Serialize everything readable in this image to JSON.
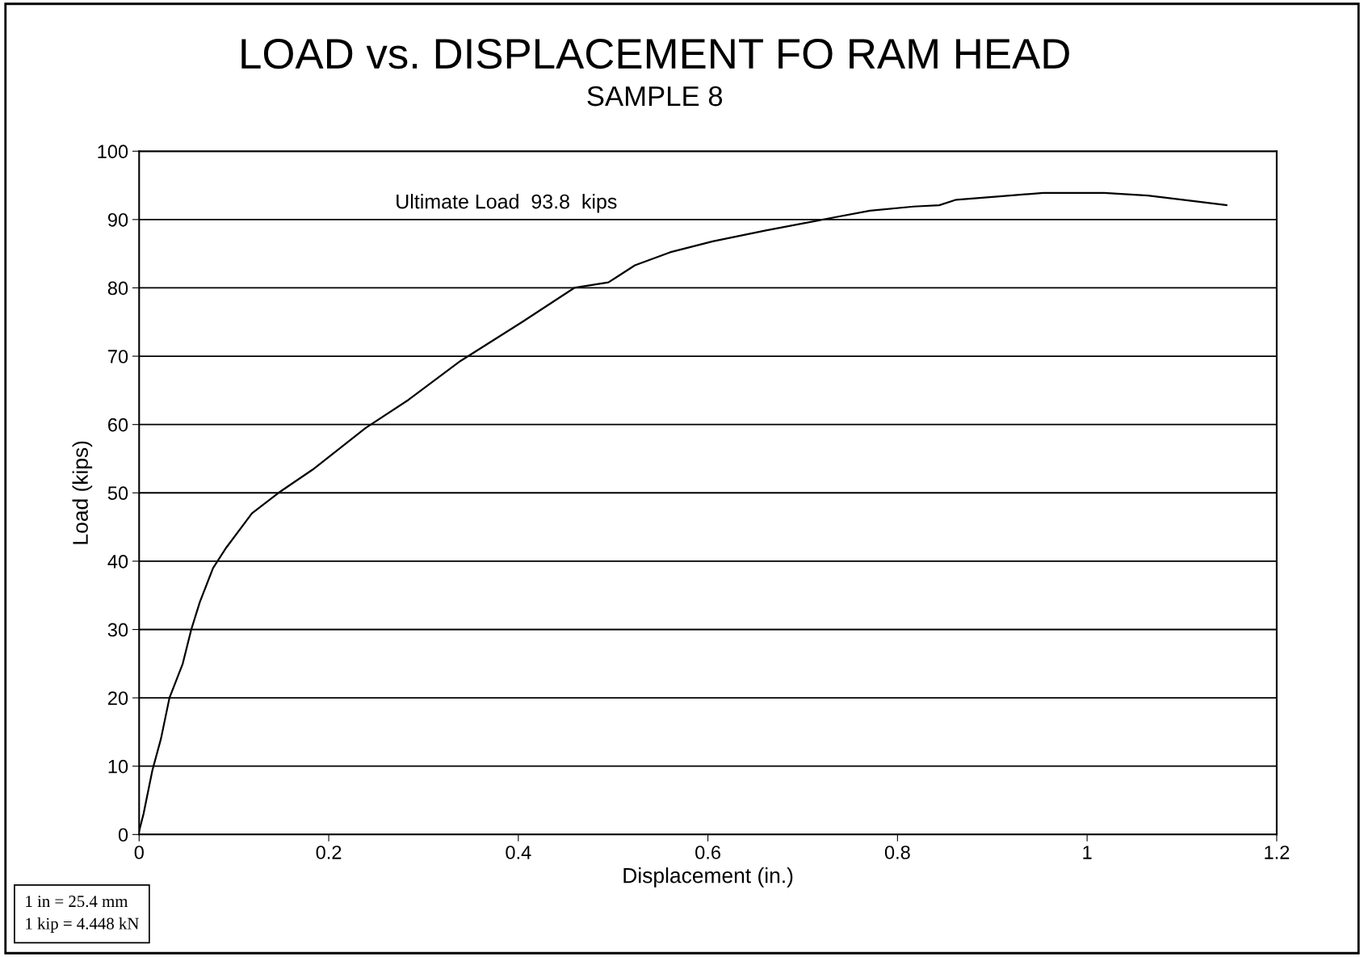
{
  "chart_data": {
    "type": "line",
    "title": "LOAD vs. DISPLACEMENT FO RAM HEAD",
    "subtitle": "SAMPLE 8",
    "xlabel": "Displacement (in.)",
    "ylabel": "Load (kips)",
    "x": [
      0,
      0.0046,
      0.014,
      0.023,
      0.032,
      0.046,
      0.055,
      0.064,
      0.078,
      0.092,
      0.119,
      0.147,
      0.183,
      0.239,
      0.284,
      0.339,
      0.404,
      0.459,
      0.495,
      0.523,
      0.56,
      0.605,
      0.661,
      0.725,
      0.771,
      0.817,
      0.844,
      0.862,
      0.908,
      0.954,
      1.018,
      1.064,
      1.101,
      1.147
    ],
    "series": [
      {
        "color": "#000000",
        "values": [
          0.5,
          3,
          9.4,
          14,
          20,
          25,
          30,
          34,
          39,
          42,
          47,
          50,
          53.4,
          59.5,
          63.6,
          69.3,
          75,
          80,
          80.8,
          83.3,
          85.2,
          86.8,
          88.4,
          90.1,
          91.3,
          91.9,
          92.1,
          92.9,
          93.4,
          93.9,
          93.9,
          93.5,
          92.9,
          92.1
        ]
      }
    ],
    "xlim": [
      0,
      1.2
    ],
    "xticks": [
      0,
      0.2,
      0.4,
      0.6,
      0.8,
      1,
      1.2
    ],
    "ylim": [
      0,
      100
    ],
    "yticks": [
      0,
      10,
      20,
      30,
      40,
      50,
      60,
      70,
      80,
      90,
      100
    ],
    "grid": "y",
    "legend": false,
    "marker": "none",
    "line_style": "solid",
    "annotations": [
      "Ultimate Load  93.8  kips",
      "1 in = 25.4 mm\n1 kip = 4.448 kN"
    ]
  }
}
